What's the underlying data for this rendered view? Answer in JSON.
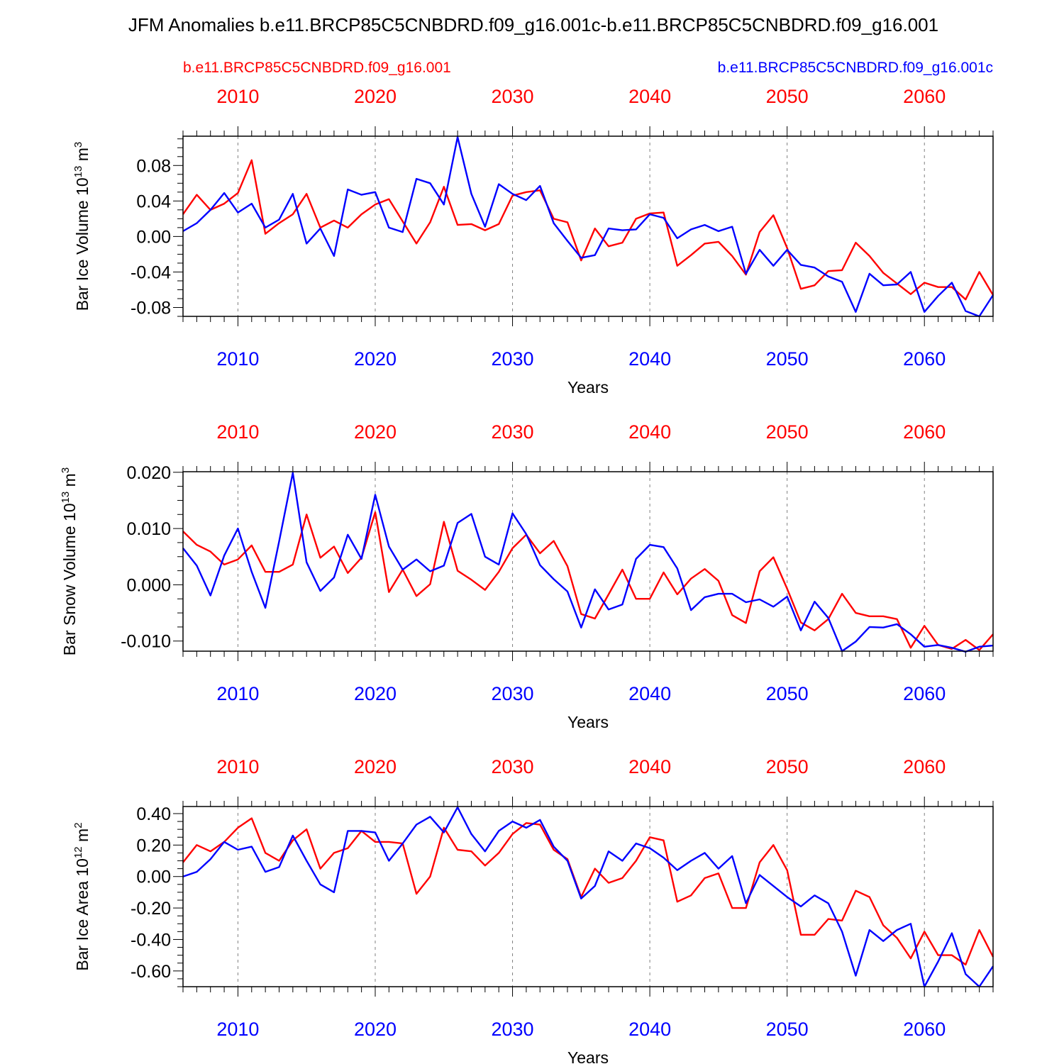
{
  "title": "JFM Anomalies b.e11.BRCP85C5CNBDRD.f09_g16.001c-b.e11.BRCP85C5CNBDRD.f09_g16.001",
  "legend": {
    "red_label": "b.e11.BRCP85C5CNBDRD.f09_g16.001",
    "blue_label": "b.e11.BRCP85C5CNBDRD.f09_g16.001c"
  },
  "colors": {
    "red": "#ff0000",
    "blue": "#0000ff",
    "axis": "#000000",
    "grid": "#808080"
  },
  "chart_data": [
    {
      "type": "line",
      "ylabel": "Bar Ice Volume 10",
      "ylabel_sup": "13",
      "ylabel_unit": " m",
      "ylabel_unit_sup": "3",
      "xlabel": "Years",
      "xlim": [
        2006,
        2065
      ],
      "ylim": [
        -0.09,
        0.113
      ],
      "yticks": [
        -0.08,
        -0.04,
        0.0,
        0.04,
        0.08
      ],
      "ytick_labels": [
        "-0.08",
        "-0.04",
        "0.00",
        "0.04",
        "0.08"
      ],
      "xticks": [
        2010,
        2020,
        2030,
        2040,
        2050,
        2060
      ],
      "xtick_labels": [
        "2010",
        "2020",
        "2030",
        "2040",
        "2050",
        "2060"
      ],
      "x_start": 2006,
      "series": [
        {
          "name": "b.e11.BRCP85C5CNBDRD.f09_g16.001",
          "color": "red",
          "values": [
            0.025,
            0.047,
            0.03,
            0.037,
            0.049,
            0.086,
            0.003,
            0.015,
            0.025,
            0.048,
            0.01,
            0.018,
            0.01,
            0.025,
            0.036,
            0.042,
            0.017,
            -0.008,
            0.016,
            0.056,
            0.013,
            0.014,
            0.007,
            0.014,
            0.046,
            0.05,
            0.052,
            0.02,
            0.016,
            -0.027,
            0.009,
            -0.011,
            -0.007,
            0.02,
            0.026,
            0.027,
            -0.033,
            -0.021,
            -0.008,
            -0.006,
            -0.022,
            -0.043,
            0.005,
            0.024,
            -0.013,
            -0.059,
            -0.055,
            -0.039,
            -0.038,
            -0.007,
            -0.022,
            -0.041,
            -0.053,
            -0.065,
            -0.052,
            -0.057,
            -0.057,
            -0.071,
            -0.04,
            -0.066
          ]
        },
        {
          "name": "b.e11.BRCP85C5CNBDRD.f09_g16.001c",
          "color": "blue",
          "values": [
            0.006,
            0.015,
            0.03,
            0.049,
            0.027,
            0.037,
            0.01,
            0.019,
            0.048,
            -0.008,
            0.009,
            -0.022,
            0.053,
            0.047,
            0.05,
            0.01,
            0.005,
            0.065,
            0.06,
            0.036,
            0.112,
            0.048,
            0.011,
            0.059,
            0.048,
            0.041,
            0.057,
            0.015,
            -0.005,
            -0.024,
            -0.021,
            0.009,
            0.007,
            0.008,
            0.025,
            0.021,
            -0.002,
            0.008,
            0.013,
            0.006,
            0.011,
            -0.042,
            -0.015,
            -0.033,
            -0.015,
            -0.032,
            -0.035,
            -0.045,
            -0.051,
            -0.085,
            -0.042,
            -0.055,
            -0.054,
            -0.04,
            -0.085,
            -0.067,
            -0.052,
            -0.084,
            -0.09,
            -0.066
          ]
        }
      ]
    },
    {
      "type": "line",
      "ylabel": "Bar Snow Volume 10",
      "ylabel_sup": "13",
      "ylabel_unit": " m",
      "ylabel_unit_sup": "3",
      "xlabel": "Years",
      "xlim": [
        2006,
        2065
      ],
      "ylim": [
        -0.0118,
        0.0201
      ],
      "yticks": [
        -0.01,
        0.0,
        0.01,
        0.02
      ],
      "ytick_labels": [
        "-0.010",
        "0.000",
        "0.010",
        "0.020"
      ],
      "xticks": [
        2010,
        2020,
        2030,
        2040,
        2050,
        2060
      ],
      "xtick_labels": [
        "2010",
        "2020",
        "2030",
        "2040",
        "2050",
        "2060"
      ],
      "x_start": 2006,
      "series": [
        {
          "name": "b.e11.BRCP85C5CNBDRD.f09_g16.001",
          "color": "red",
          "values": [
            0.0095,
            0.0071,
            0.0059,
            0.0036,
            0.0045,
            0.007,
            0.0023,
            0.0023,
            0.0036,
            0.0125,
            0.0048,
            0.0068,
            0.0021,
            0.0048,
            0.0129,
            -0.0013,
            0.0027,
            -0.002,
            0.0001,
            0.0112,
            0.0025,
            0.0009,
            -0.0009,
            0.0023,
            0.0065,
            0.0089,
            0.0056,
            0.0078,
            0.0033,
            -0.0052,
            -0.006,
            -0.0017,
            0.0027,
            -0.0025,
            -0.0025,
            0.0022,
            -0.0017,
            0.0011,
            0.0028,
            0.0007,
            -0.0054,
            -0.0068,
            0.0024,
            0.0049,
            -0.0007,
            -0.0067,
            -0.0081,
            -0.0061,
            -0.0016,
            -0.005,
            -0.0056,
            -0.0056,
            -0.0061,
            -0.0112,
            -0.0073,
            -0.0107,
            -0.0114,
            -0.0098,
            -0.0116,
            -0.0088
          ]
        },
        {
          "name": "b.e11.BRCP85C5CNBDRD.f09_g16.001c",
          "color": "blue",
          "values": [
            0.0065,
            0.0034,
            -0.0019,
            0.0052,
            0.01,
            0.0023,
            -0.0041,
            0.0077,
            0.0199,
            0.004,
            -0.0011,
            0.0013,
            0.0089,
            0.0046,
            0.016,
            0.0068,
            0.0027,
            0.0045,
            0.0024,
            0.0034,
            0.011,
            0.0126,
            0.005,
            0.0036,
            0.0127,
            0.009,
            0.0035,
            0.001,
            -0.0012,
            -0.0076,
            -0.0008,
            -0.0044,
            -0.0035,
            0.0046,
            0.0071,
            0.0067,
            0.0029,
            -0.0045,
            -0.0022,
            -0.0016,
            -0.0016,
            -0.0031,
            -0.0026,
            -0.0039,
            -0.0021,
            -0.0081,
            -0.003,
            -0.0059,
            -0.0118,
            -0.0101,
            -0.0075,
            -0.0076,
            -0.007,
            -0.0088,
            -0.011,
            -0.0107,
            -0.0112,
            -0.0119,
            -0.011,
            -0.0108
          ]
        }
      ]
    },
    {
      "type": "line",
      "ylabel": "Bar Ice Area 10",
      "ylabel_sup": "12",
      "ylabel_unit": " m",
      "ylabel_unit_sup": "2",
      "xlabel": "Years",
      "xlim": [
        2006,
        2065
      ],
      "ylim": [
        -0.7,
        0.445
      ],
      "yticks": [
        -0.6,
        -0.4,
        -0.2,
        0.0,
        0.2,
        0.4
      ],
      "ytick_labels": [
        "-0.60",
        "-0.40",
        "-0.20",
        "0.00",
        "0.20",
        "0.40"
      ],
      "xticks": [
        2010,
        2020,
        2030,
        2040,
        2050,
        2060
      ],
      "xtick_labels": [
        "2010",
        "2020",
        "2030",
        "2040",
        "2050",
        "2060"
      ],
      "x_start": 2006,
      "series": [
        {
          "name": "b.e11.BRCP85C5CNBDRD.f09_g16.001",
          "color": "red",
          "values": [
            0.09,
            0.2,
            0.16,
            0.22,
            0.31,
            0.37,
            0.15,
            0.1,
            0.23,
            0.3,
            0.05,
            0.15,
            0.18,
            0.29,
            0.22,
            0.22,
            0.21,
            -0.11,
            0.0,
            0.31,
            0.17,
            0.16,
            0.07,
            0.15,
            0.27,
            0.34,
            0.33,
            0.17,
            0.11,
            -0.13,
            0.05,
            -0.04,
            -0.01,
            0.1,
            0.25,
            0.23,
            -0.16,
            -0.12,
            -0.01,
            0.02,
            -0.2,
            -0.2,
            0.09,
            0.2,
            0.04,
            -0.37,
            -0.37,
            -0.27,
            -0.28,
            -0.09,
            -0.13,
            -0.31,
            -0.39,
            -0.52,
            -0.35,
            -0.5,
            -0.5,
            -0.56,
            -0.34,
            -0.51
          ]
        },
        {
          "name": "b.e11.BRCP85C5CNBDRD.f09_g16.001c",
          "color": "blue",
          "values": [
            0.0,
            0.03,
            0.11,
            0.22,
            0.17,
            0.19,
            0.03,
            0.06,
            0.26,
            0.1,
            -0.05,
            -0.1,
            0.29,
            0.29,
            0.28,
            0.1,
            0.21,
            0.33,
            0.38,
            0.28,
            0.44,
            0.27,
            0.16,
            0.29,
            0.35,
            0.31,
            0.36,
            0.19,
            0.1,
            -0.14,
            -0.06,
            0.16,
            0.1,
            0.21,
            0.18,
            0.12,
            0.04,
            0.1,
            0.15,
            0.05,
            0.13,
            -0.17,
            0.01,
            -0.06,
            -0.13,
            -0.19,
            -0.12,
            -0.17,
            -0.35,
            -0.63,
            -0.34,
            -0.41,
            -0.34,
            -0.3,
            -0.7,
            -0.54,
            -0.36,
            -0.62,
            -0.7,
            -0.57
          ]
        }
      ]
    }
  ]
}
